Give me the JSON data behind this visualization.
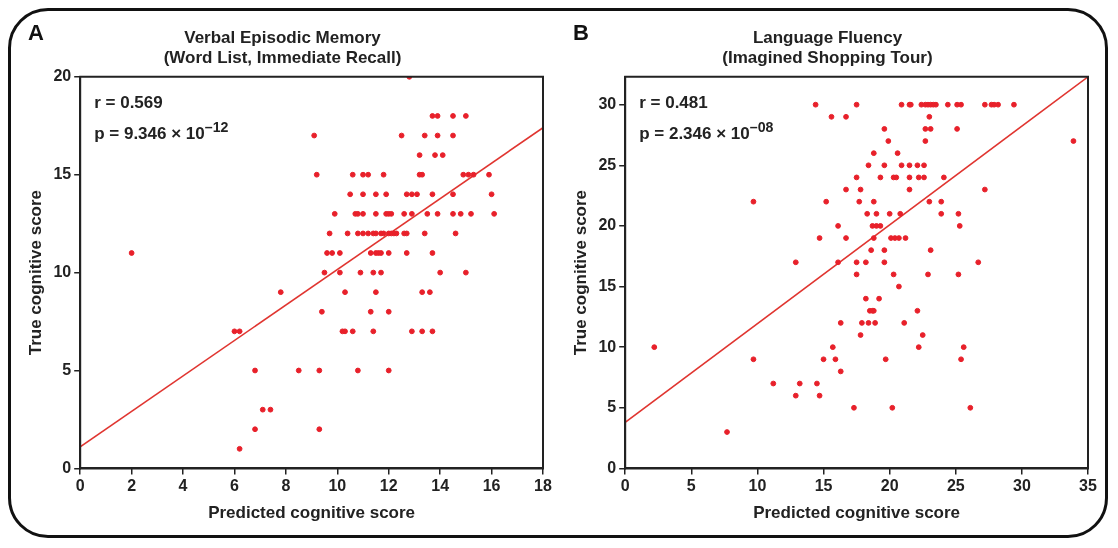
{
  "chart_data": [
    {
      "type": "scatter",
      "title": "Verbal Episodic Memory\n(Word List, Immediate Recall)",
      "xlabel": "Predicted cognitive score",
      "ylabel": "True cognitive score",
      "annotations": [
        "A",
        "r = 0.569",
        "p = 9.346 × 10$^{–12}$"
      ],
      "xlim": [
        0,
        18
      ],
      "xticks": [
        0,
        2,
        4,
        6,
        8,
        10,
        12,
        14,
        16,
        18
      ],
      "ylim": [
        0,
        20
      ],
      "yticks": [
        0,
        5,
        10,
        15,
        20
      ],
      "grid": false,
      "legend": false,
      "series": [
        {
          "marker": "circle",
          "color": "#e8202a",
          "x": [
            12.8,
            13.7,
            13.9,
            14.5,
            15.0,
            9.1,
            12.5,
            13.4,
            13.9,
            14.5,
            13.2,
            13.8,
            14.1,
            9.2,
            10.6,
            11.0,
            11.2,
            11.8,
            13.2,
            13.3,
            14.9,
            15.1,
            15.3,
            15.9,
            10.5,
            11.0,
            11.5,
            11.9,
            12.7,
            12.9,
            13.1,
            13.7,
            14.5,
            16.0,
            9.9,
            10.7,
            10.8,
            11.0,
            11.5,
            11.9,
            12.0,
            12.1,
            12.6,
            12.9,
            13.5,
            13.9,
            14.5,
            14.8,
            15.2,
            16.1,
            9.7,
            10.4,
            10.8,
            11.0,
            11.2,
            11.4,
            11.5,
            11.7,
            11.8,
            12.0,
            12.1,
            12.2,
            12.3,
            12.6,
            12.7,
            13.4,
            14.6,
            2.0,
            9.6,
            9.8,
            10.1,
            11.3,
            11.5,
            11.6,
            11.7,
            12.0,
            12.7,
            13.7,
            9.5,
            10.1,
            10.9,
            11.4,
            11.7,
            14.0,
            15.0,
            7.8,
            10.3,
            11.5,
            13.3,
            13.6,
            9.4,
            11.3,
            12.0,
            6.0,
            6.2,
            10.2,
            10.3,
            10.6,
            11.4,
            12.9,
            13.3,
            13.7,
            6.8,
            8.5,
            9.3,
            10.8,
            12.0,
            7.1,
            7.4,
            6.8,
            9.3,
            6.2
          ],
          "values": [
            20,
            18,
            18,
            18,
            18,
            17,
            17,
            17,
            17,
            17,
            16,
            16,
            16,
            15,
            15,
            15,
            15,
            15,
            15,
            15,
            15,
            15,
            15,
            15,
            14,
            14,
            14,
            14,
            14,
            14,
            14,
            14,
            14,
            14,
            13,
            13,
            13,
            13,
            13,
            13,
            13,
            13,
            13,
            13,
            13,
            13,
            13,
            13,
            13,
            13,
            12,
            12,
            12,
            12,
            12,
            12,
            12,
            12,
            12,
            12,
            12,
            12,
            12,
            12,
            12,
            12,
            12,
            11,
            11,
            11,
            11,
            11,
            11,
            11,
            11,
            11,
            11,
            11,
            10,
            10,
            10,
            10,
            10,
            10,
            10,
            9,
            9,
            9,
            9,
            9,
            8,
            8,
            8,
            7,
            7,
            7,
            7,
            7,
            7,
            7,
            7,
            7,
            5,
            5,
            5,
            5,
            5,
            3,
            3,
            2,
            2,
            1
          ]
        },
        {
          "type": "line",
          "marker": "none",
          "color": "#e03530",
          "x": [
            0,
            18
          ],
          "values": [
            1.1,
            17.4
          ]
        }
      ]
    },
    {
      "type": "scatter",
      "title": "Language Fluency\n(Imagined Shopping Tour)",
      "xlabel": "Predicted cognitive score",
      "ylabel": "True cognitive score",
      "annotations": [
        "B",
        "r = 0.481",
        "p = 2.346 × 10$^{–08}$"
      ],
      "xlim": [
        0,
        35
      ],
      "xticks": [
        0,
        5,
        10,
        15,
        20,
        25,
        30,
        35
      ],
      "ylim": [
        0,
        32.3
      ],
      "yticks": [
        0,
        5,
        10,
        15,
        20,
        25,
        30
      ],
      "grid": false,
      "legend": false,
      "series": [
        {
          "marker": "circle",
          "color": "#e8202a",
          "x": [
            14.4,
            15.6,
            16.7,
            9.7,
            15.2,
            16.7,
            16.1,
            14.7,
            16.7,
            12.9,
            16.1,
            16.3,
            2.2,
            15.7,
            9.7,
            15.0,
            15.9,
            16.3,
            11.2,
            13.2,
            14.5,
            12.9,
            14.7,
            7.7,
            17.5,
            20.9,
            21.5,
            21.6,
            22.4,
            22.7,
            22.9,
            23.1,
            23.3,
            23.5,
            24.4,
            25.1,
            25.4,
            27.2,
            27.7,
            27.9,
            28.2,
            29.4,
            23.0,
            19.6,
            22.7,
            23.1,
            25.1,
            19.9,
            22.7,
            33.9,
            18.8,
            20.6,
            18.4,
            19.6,
            20.9,
            21.5,
            22.1,
            22.6,
            17.5,
            19.3,
            20.3,
            20.5,
            21.5,
            22.2,
            22.6,
            24.1,
            17.8,
            21.5,
            27.2,
            17.7,
            18.8,
            23.0,
            23.9,
            18.3,
            19.0,
            20.0,
            20.8,
            23.9,
            25.2,
            18.7,
            19.0,
            19.3,
            25.3,
            18.8,
            20.1,
            20.4,
            20.7,
            21.2,
            18.6,
            19.6,
            23.1,
            17.5,
            18.2,
            19.6,
            26.7,
            17.5,
            20.3,
            22.9,
            25.2,
            20.7,
            18.2,
            19.2,
            18.5,
            18.7,
            18.8,
            22.1,
            17.9,
            18.4,
            18.9,
            21.1,
            17.8,
            22.5,
            22.2,
            25.6,
            19.7,
            25.4,
            17.3,
            20.2,
            26.1
          ],
          "values": [
            30,
            29,
            29,
            22,
            22,
            23,
            20,
            19,
            19,
            17,
            17,
            12,
            10,
            10,
            9,
            9,
            9,
            8,
            7,
            7,
            7,
            6,
            6,
            3,
            30,
            30,
            30,
            30,
            30,
            30,
            30,
            30,
            30,
            30,
            30,
            30,
            30,
            30,
            30,
            30,
            30,
            30,
            29,
            28,
            28,
            28,
            28,
            27,
            27,
            27,
            26,
            26,
            25,
            25,
            25,
            25,
            25,
            25,
            24,
            24,
            24,
            24,
            24,
            24,
            24,
            24,
            23,
            23,
            23,
            22,
            22,
            22,
            22,
            21,
            21,
            21,
            21,
            21,
            21,
            20,
            20,
            20,
            20,
            19,
            19,
            19,
            19,
            19,
            18,
            18,
            18,
            17,
            17,
            17,
            17,
            16,
            16,
            16,
            16,
            15,
            14,
            14,
            13,
            13,
            13,
            13,
            12,
            12,
            12,
            12,
            11,
            11,
            10,
            10,
            9,
            9,
            5,
            5,
            5
          ]
        },
        {
          "type": "line",
          "marker": "none",
          "color": "#e03530",
          "x": [
            0,
            35
          ],
          "values": [
            3.8,
            32.3
          ]
        }
      ]
    }
  ]
}
